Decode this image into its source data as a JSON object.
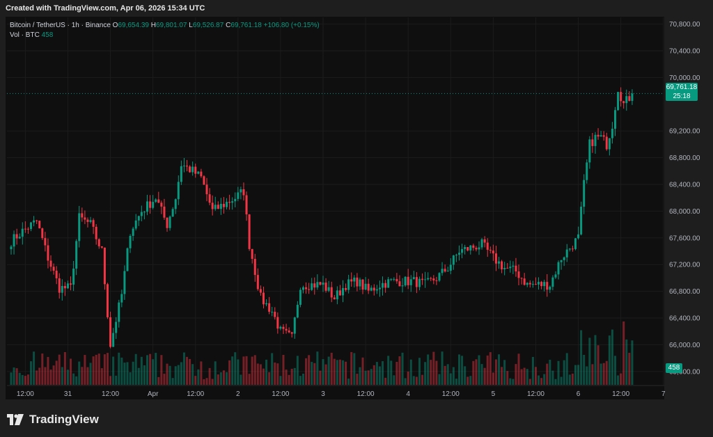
{
  "header": {
    "created": "Created with TradingView.com, Apr 06, 2026 15:34 UTC"
  },
  "legend": {
    "symbol": "Bitcoin / TetherUS · 1h · Binance",
    "o_label": "O",
    "o_value": "69,654.39",
    "h_label": "H",
    "h_value": "69,801.07",
    "l_label": "L",
    "l_value": "69,526.87",
    "c_label": "C",
    "c_value": "69,761.18",
    "change": "+106.80 (+0.15%)",
    "vol_label": "Vol · BTC",
    "vol_value": "458"
  },
  "price_tag": {
    "price": "69,761.18",
    "countdown": "25:18"
  },
  "volume_tag": "458",
  "brand": {
    "name": "TradingView"
  },
  "colors": {
    "up": "#089981",
    "down": "#f23645",
    "bg": "#0f0f0f"
  },
  "chart_data": {
    "type": "candlestick",
    "symbol": "BTCUSDT",
    "interval": "1h",
    "ylim": [
      65400,
      70900
    ],
    "y_ticks": [
      "70,800.00",
      "70,400.00",
      "70,000.00",
      "69,200.00",
      "68,800.00",
      "68,400.00",
      "68,000.00",
      "67,600.00",
      "67,200.00",
      "66,800.00",
      "66,400.00",
      "66,000.00",
      "65,600.00"
    ],
    "y_tick_values": [
      70800,
      70400,
      70000,
      69200,
      68800,
      68400,
      68000,
      67600,
      67200,
      66800,
      66400,
      66000,
      65600
    ],
    "x_ticks": [
      "12:00",
      "31",
      "12:00",
      "Apr",
      "12:00",
      "2",
      "12:00",
      "3",
      "12:00",
      "4",
      "12:00",
      "5",
      "12:00",
      "6",
      "12:00",
      "7"
    ],
    "x_tick_index": [
      5,
      20,
      35,
      50,
      65,
      80,
      95,
      110,
      125,
      140,
      155,
      170,
      185,
      200,
      215,
      230
    ],
    "last_price": 69761.18,
    "anchors": [
      [
        0,
        67550
      ],
      [
        4,
        67700
      ],
      [
        9,
        67850
      ],
      [
        13,
        67300
      ],
      [
        17,
        66850
      ],
      [
        21,
        66850
      ],
      [
        24,
        67900
      ],
      [
        28,
        67800
      ],
      [
        32,
        67400
      ],
      [
        35,
        66000
      ],
      [
        39,
        66750
      ],
      [
        42,
        67700
      ],
      [
        46,
        68000
      ],
      [
        51,
        68200
      ],
      [
        55,
        67800
      ],
      [
        58,
        68200
      ],
      [
        60,
        68700
      ],
      [
        64,
        68600
      ],
      [
        67,
        68500
      ],
      [
        71,
        68000
      ],
      [
        75,
        68100
      ],
      [
        79,
        68200
      ],
      [
        82,
        68300
      ],
      [
        84,
        67500
      ],
      [
        88,
        66700
      ],
      [
        92,
        66500
      ],
      [
        95,
        66200
      ],
      [
        99,
        66100
      ],
      [
        102,
        66900
      ],
      [
        106,
        66900
      ],
      [
        110,
        66900
      ],
      [
        114,
        66700
      ],
      [
        118,
        66900
      ],
      [
        122,
        66950
      ],
      [
        126,
        66800
      ],
      [
        130,
        66900
      ],
      [
        134,
        66950
      ],
      [
        138,
        66950
      ],
      [
        142,
        66950
      ],
      [
        146,
        66900
      ],
      [
        150,
        67000
      ],
      [
        154,
        67150
      ],
      [
        158,
        67400
      ],
      [
        162,
        67450
      ],
      [
        166,
        67500
      ],
      [
        170,
        67300
      ],
      [
        174,
        67150
      ],
      [
        178,
        67100
      ],
      [
        182,
        66900
      ],
      [
        186,
        66900
      ],
      [
        190,
        66900
      ],
      [
        194,
        67300
      ],
      [
        198,
        67500
      ],
      [
        200,
        67600
      ],
      [
        202,
        68400
      ],
      [
        204,
        69000
      ],
      [
        206,
        69100
      ],
      [
        208,
        69100
      ],
      [
        210,
        69000
      ],
      [
        212,
        69300
      ],
      [
        214,
        69850
      ],
      [
        216,
        69600
      ],
      [
        218,
        69700
      ],
      [
        219,
        69761
      ]
    ],
    "volume_profile": "relative volume bars below candles, up = green, down = red"
  }
}
